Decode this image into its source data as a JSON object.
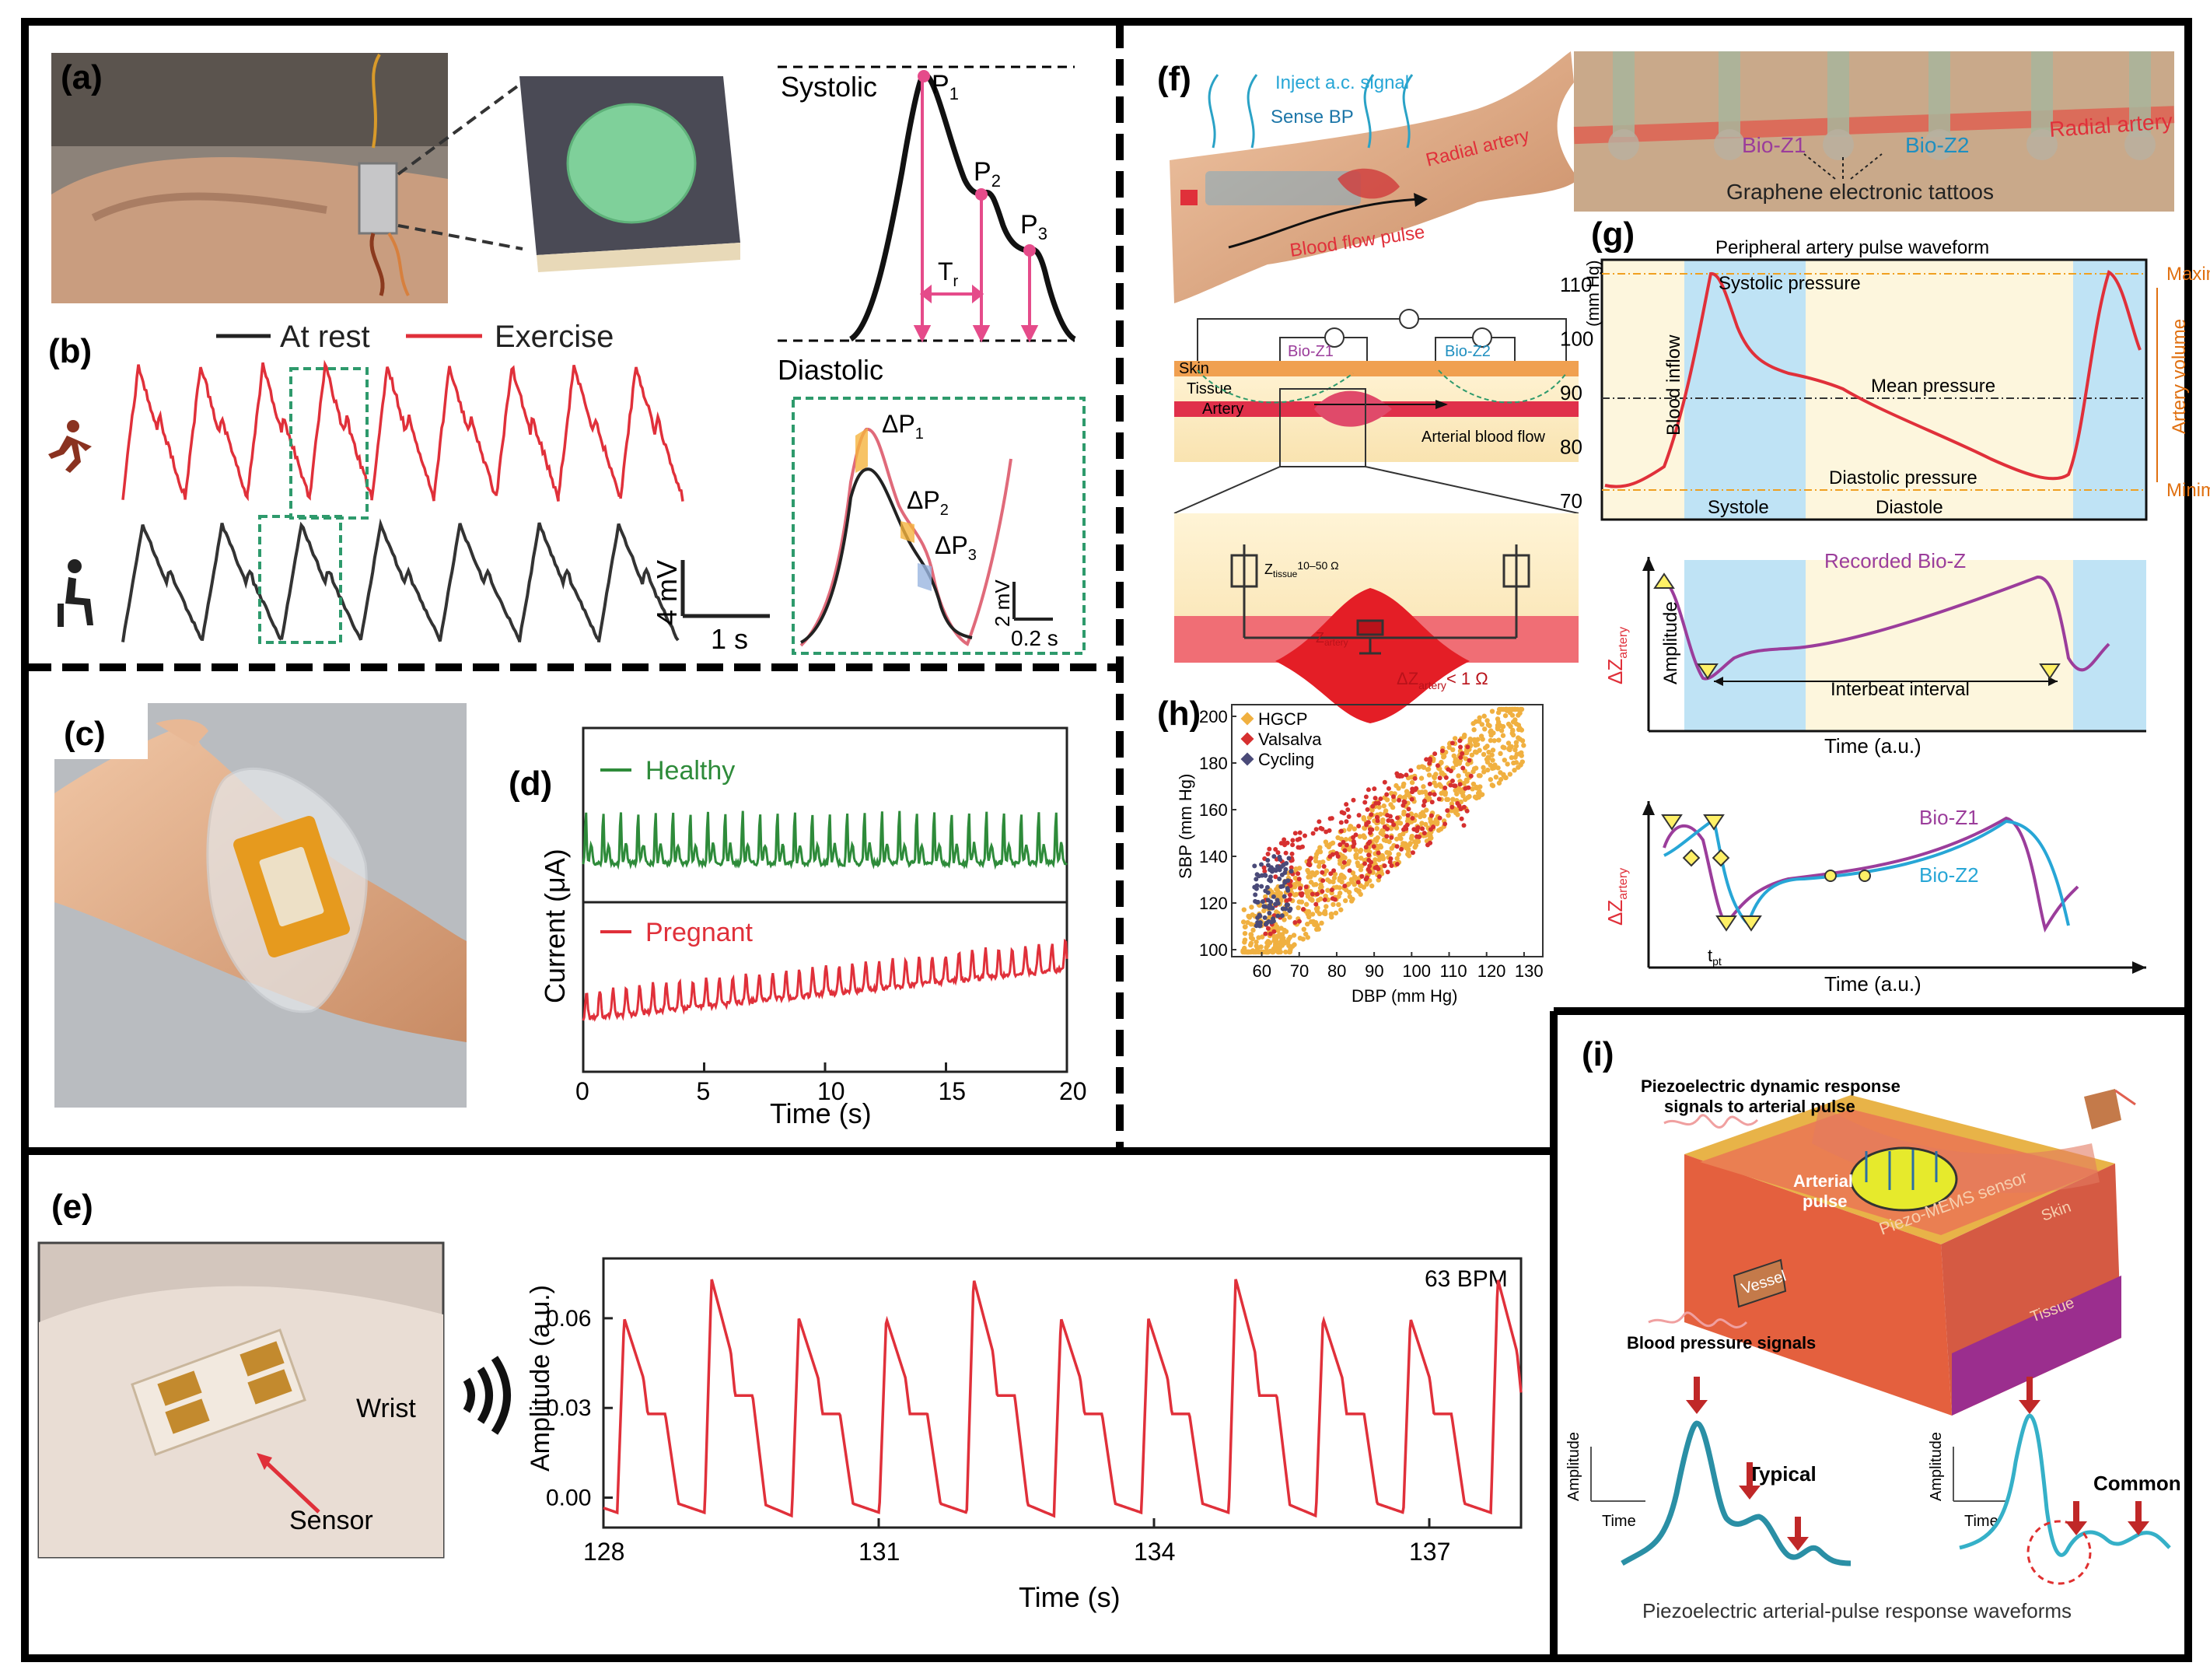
{
  "panels": {
    "a": {
      "label": "(a)",
      "systolic": "Systolic",
      "diastolic": "Diastolic",
      "p1": "P",
      "p1_sub": "1",
      "p2": "P",
      "p2_sub": "2",
      "p3": "P",
      "p3_sub": "3",
      "tr": "T",
      "tr_sub": "r"
    },
    "b": {
      "label": "(b)",
      "legend_rest": "At rest",
      "legend_exercise": "Exercise",
      "scale_mv": "4 mV",
      "scale_s": "1 s",
      "zoom_dp1": "ΔP",
      "zoom_dp1_sub": "1",
      "zoom_dp2": "ΔP",
      "zoom_dp2_sub": "2",
      "zoom_dp3": "ΔP",
      "zoom_dp3_sub": "3",
      "zoom_mv": "2 mV",
      "zoom_s": "0.2 s"
    },
    "c": {
      "label": "(c)"
    },
    "d": {
      "label": "(d)",
      "healthy": "Healthy",
      "pregnant": "Pregnant",
      "ylabel": "Current (μA)",
      "xlabel": "Time (s)",
      "xticks": [
        "0",
        "5",
        "10",
        "15",
        "20"
      ]
    },
    "e": {
      "label": "(e)",
      "wrist": "Wrist",
      "sensor": "Sensor",
      "bpm": "63 BPM",
      "ylabel": "Amplitude (a.u.)",
      "xlabel": "Time (s)",
      "yticks": [
        "0.06",
        "0.03",
        "0.00"
      ],
      "xticks": [
        "128",
        "131",
        "134",
        "137"
      ]
    },
    "f": {
      "label": "(f)",
      "inject": "Inject a.c. signal",
      "sense": "Sense BP",
      "radial_artery": "Radial artery",
      "blood_flow_pulse": "Blood flow pulse",
      "bioz1": "Bio-Z1",
      "bioz2": "Bio-Z2",
      "radial_artery2": "Radial artery",
      "tattoos": "Graphene electronic tattoos",
      "skin": "Skin",
      "tissue": "Tissue",
      "artery": "Artery",
      "arterial_blood_flow": "Arterial blood flow",
      "ztissue": "Z",
      "ztissue_sub": "tissue",
      "ztissue_val": "10–50 Ω",
      "zartery": "Z",
      "zartery_sub": "artery",
      "dz": "ΔZ",
      "dz_sub": "artery",
      "dz_val": "< 1 Ω"
    },
    "g": {
      "label": "(g)",
      "title": "Peripheral artery pulse waveform",
      "systolic_pressure": "Systolic pressure",
      "mean_pressure": "Mean pressure",
      "diastolic_pressure": "Diastolic pressure",
      "systole": "Systole",
      "diastole": "Diastole",
      "blood_inflow": "Blood inflow",
      "maximum": "Maximum",
      "minimum": "Minimum",
      "artery_volume": "Artery volume",
      "ylabel_top": "(mm Hg)",
      "yticks": [
        "110",
        "100",
        "90",
        "80",
        "70"
      ],
      "recorded": "Recorded Bio-Z",
      "amplitude": "Amplitude",
      "interbeat": "Interbeat interval",
      "dz": "ΔZ",
      "dz_sub": "artery",
      "time": "Time (a.u.)",
      "bioz1": "Bio-Z1",
      "bioz2": "Bio-Z2",
      "tpt": "t",
      "tpt_sub": "pt",
      "time2": "Time (a.u.)"
    },
    "h": {
      "label": "(h)",
      "legend": [
        "HGCP",
        "Valsalva",
        "Cycling"
      ],
      "ylabel": "SBP (mm Hg)",
      "xlabel": "DBP (mm Hg)",
      "yticks": [
        "200",
        "180",
        "160",
        "140",
        "120",
        "100"
      ],
      "xticks": [
        "60",
        "70",
        "80",
        "90",
        "100",
        "110",
        "120",
        "130"
      ]
    },
    "i": {
      "label": "(i)",
      "piezo_dyn": "Piezoelectric dynamic response",
      "piezo_dyn2": "signals to arterial pulse",
      "arterial_pulse": "Arterial",
      "arterial_pulse2": "pulse",
      "piezo_mems": "Piezo-MEMS sensor",
      "skin": "Skin",
      "tissue": "Tissue",
      "vessel": "Vessel",
      "bp_signals": "Blood pressure signals",
      "typical": "Typical",
      "common": "Common",
      "amplitude": "Amplitude",
      "time": "Time",
      "caption": "Piezoelectric arterial-pulse response waveforms"
    }
  },
  "colors": {
    "border": "#000000",
    "red": "#e0303a",
    "green": "#2e8b3a",
    "cyan": "#27a6d6",
    "purple": "#9b3d9b",
    "orange": "#f0a020",
    "teal": "#2a8fa5"
  },
  "chart_data": [
    {
      "type": "line",
      "title": "",
      "xlabel": "Time (s)",
      "ylabel": "Current (μA)",
      "xlim": [
        0,
        20
      ],
      "series": [
        {
          "name": "Healthy",
          "period": 0.72
        },
        {
          "name": "Pregnant",
          "period": 0.55
        }
      ]
    },
    {
      "type": "line",
      "title": "",
      "xlabel": "Time (s)",
      "ylabel": "Amplitude (a.u.)",
      "xlim": [
        128,
        138
      ],
      "ylim": [
        -0.01,
        0.08
      ],
      "annotation": "63 BPM",
      "series": [
        {
          "name": "",
          "period": 0.952
        }
      ]
    },
    {
      "type": "scatter",
      "title": "",
      "xlabel": "DBP (mm Hg)",
      "ylabel": "SBP (mm Hg)",
      "xlim": [
        52,
        135
      ],
      "ylim": [
        97,
        205
      ],
      "series": [
        {
          "name": "HGCP"
        },
        {
          "name": "Valsalva"
        },
        {
          "name": "Cycling"
        }
      ]
    }
  ]
}
